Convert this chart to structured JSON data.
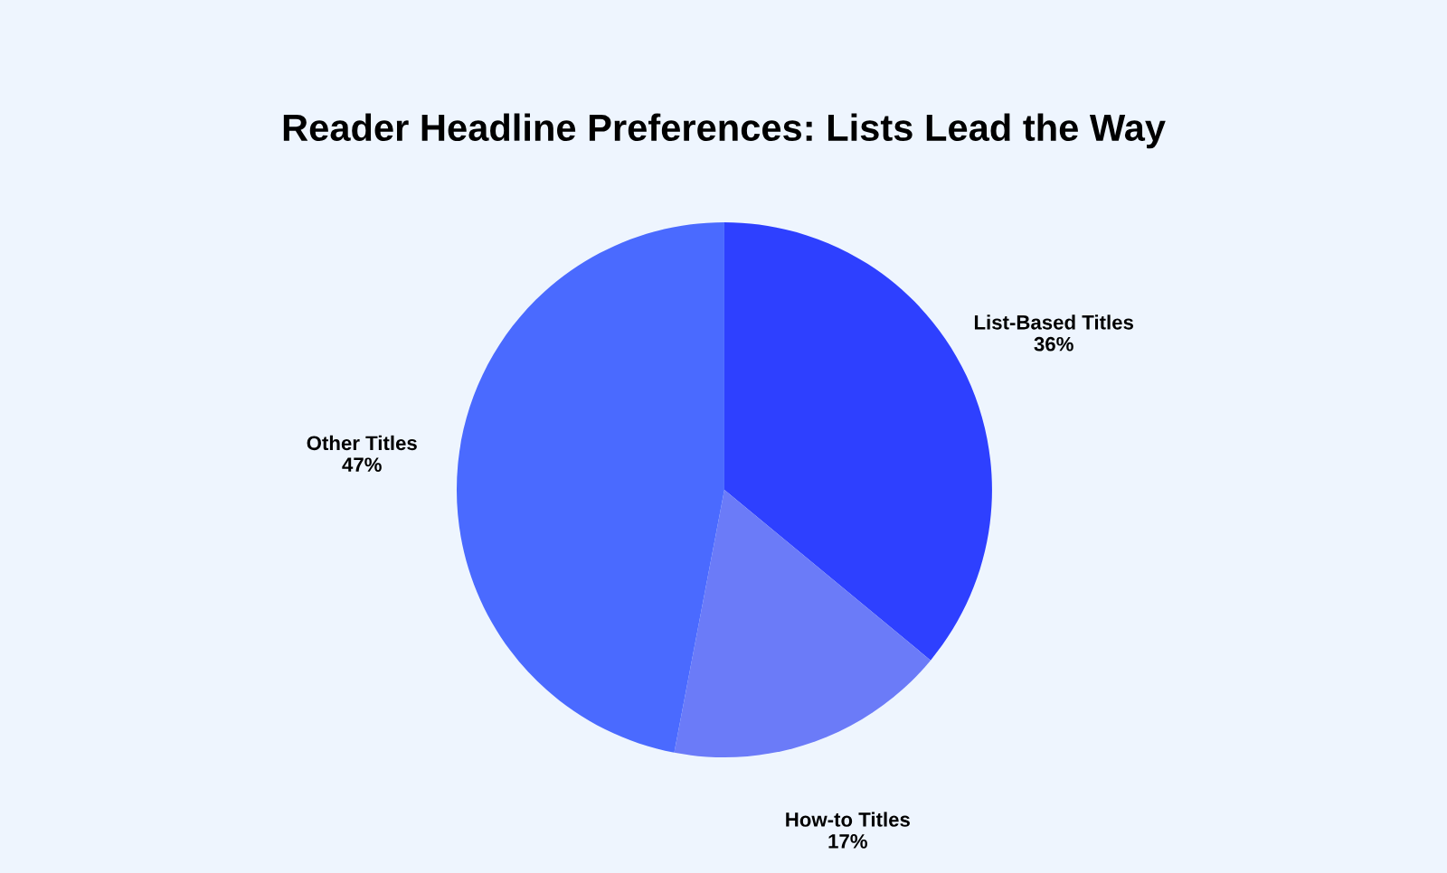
{
  "chart_data": {
    "type": "pie",
    "title": "Reader Headline Preferences: Lists Lead the Way",
    "categories": [
      "List-Based Titles",
      "How-to Titles",
      "Other Titles"
    ],
    "values": [
      36,
      17,
      47
    ],
    "value_labels": [
      "36%",
      "17%",
      "47%"
    ],
    "colors": [
      "#2e40ff",
      "#6b7bf8",
      "#4a6aff"
    ],
    "legend": false
  }
}
